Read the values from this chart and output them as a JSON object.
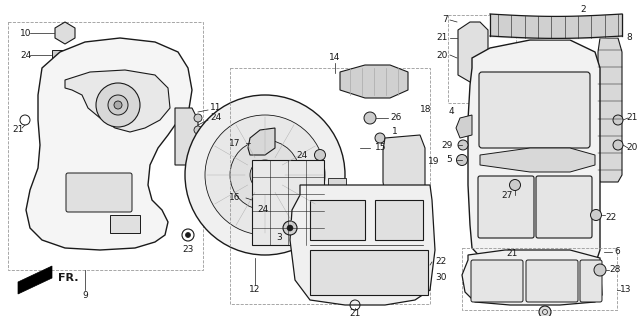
{
  "bg_color": "#ffffff",
  "fig_width": 6.4,
  "fig_height": 3.16,
  "dpi": 100,
  "line_color": "#1a1a1a",
  "label_fontsize": 6.5
}
